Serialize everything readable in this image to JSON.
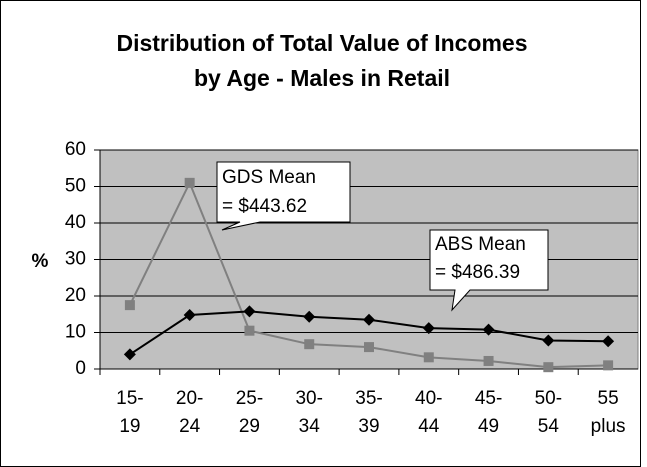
{
  "chart_data": {
    "type": "line",
    "title": [
      "Distribution of Total Value of Incomes",
      "by Age - Males in Retail"
    ],
    "y_label": "%",
    "categories": [
      [
        "15-",
        "19"
      ],
      [
        "20-",
        "24"
      ],
      [
        "25-",
        "29"
      ],
      [
        "30-",
        "34"
      ],
      [
        "35-",
        "39"
      ],
      [
        "40-",
        "44"
      ],
      [
        "45-",
        "49"
      ],
      [
        "50-",
        "54"
      ],
      [
        "55",
        "plus"
      ]
    ],
    "series": [
      {
        "color": "#808080",
        "marker": "square",
        "values": [
          17.5,
          51,
          10.5,
          6.8,
          6,
          3.2,
          2.2,
          0.5,
          1
        ]
      },
      {
        "color": "#000000",
        "marker": "diamond",
        "values": [
          4,
          14.8,
          15.8,
          14.3,
          13.5,
          11.2,
          10.8,
          7.8,
          7.6
        ]
      }
    ],
    "annotations": [
      [
        "GDS Mean",
        "= $443.62"
      ],
      [
        "ABS Mean",
        "= $486.39"
      ]
    ],
    "ylim": [
      0,
      60
    ],
    "yticks": [
      0,
      10,
      20,
      30,
      40,
      50,
      60
    ],
    "grid": true
  }
}
